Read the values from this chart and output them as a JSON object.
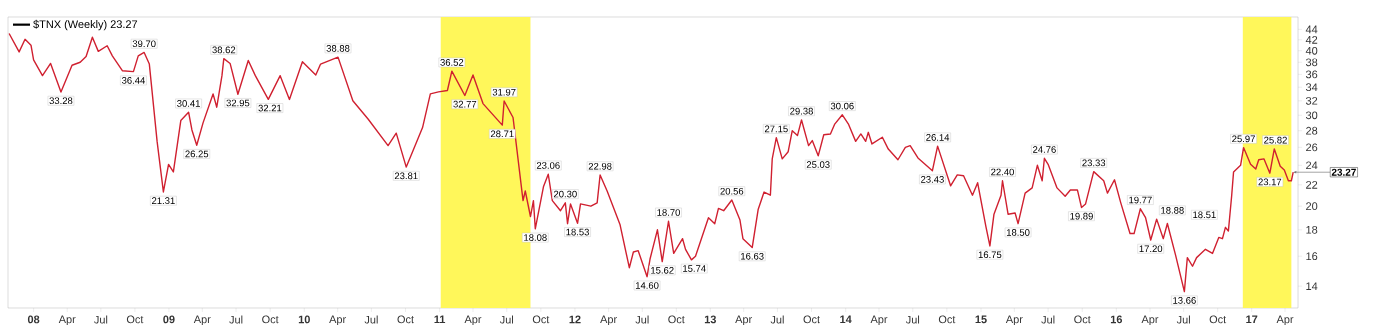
{
  "chart_data": {
    "type": "line",
    "log": true,
    "legend": "top left",
    "line_style": "solid",
    "series": [
      {
        "name": "$TNX (Weekly) 23.27",
        "color": "#d02030",
        "x": [
          "2007-10-27",
          "2007-11-23",
          "2007-12-09",
          "2007-12-25",
          "2008-01-01",
          "2008-01-25",
          "2008-02-16",
          "2008-03-15",
          "2008-04-14",
          "2008-05-06",
          "2008-05-22",
          "2008-06-08",
          "2008-06-24",
          "2008-07-18",
          "2008-08-01",
          "2008-08-28",
          "2008-09-27",
          "2008-10-10",
          "2008-10-26",
          "2008-11-09",
          "2008-11-30",
          "2008-12-17",
          "2008-12-31",
          "2009-01-13",
          "2009-02-02",
          "2009-02-23",
          "2009-03-04",
          "2009-03-17",
          "2009-04-03",
          "2009-04-30",
          "2009-05-10",
          "2009-05-24",
          "2009-05-29",
          "2009-06-15",
          "2009-07-06",
          "2009-08-03",
          "2009-08-22",
          "2009-09-26",
          "2009-10-28",
          "2009-11-22",
          "2009-12-27",
          "2010-02-01",
          "2010-02-14",
          "2010-04-02",
          "2010-05-12",
          "2010-06-22",
          "2010-08-15",
          "2010-09-06",
          "2010-10-03",
          "2010-10-22",
          "2010-11-16",
          "2010-12-07",
          "2010-12-29",
          "2011-01-22",
          "2011-02-03",
          "2011-03-10",
          "2011-04-01",
          "2011-04-28",
          "2011-06-19",
          "2011-06-24",
          "2011-07-18",
          "2011-08-14",
          "2011-08-20",
          "2011-09-03",
          "2011-09-11",
          "2011-09-16",
          "2011-10-08",
          "2011-10-21",
          "2011-11-01",
          "2011-11-23",
          "2011-12-06",
          "2011-12-12",
          "2011-12-20",
          "2012-01-08",
          "2012-01-16",
          "2012-02-13",
          "2012-03-01",
          "2012-03-09",
          "2012-03-28",
          "2012-05-02",
          "2012-05-27",
          "2012-06-07",
          "2012-06-20",
          "2012-07-14",
          "2012-07-22",
          "2012-08-11",
          "2012-08-24",
          "2012-09-10",
          "2012-09-24",
          "2012-10-18",
          "2012-10-26",
          "2012-11-11",
          "2012-11-22",
          "2012-12-27",
          "2013-01-13",
          "2013-01-23",
          "2013-02-06",
          "2013-02-28",
          "2013-03-22",
          "2013-03-30",
          "2013-04-24",
          "2013-05-10",
          "2013-05-26",
          "2013-06-12",
          "2013-06-17",
          "2013-06-28",
          "2013-07-14",
          "2013-07-30",
          "2013-08-10",
          "2013-08-24",
          "2013-09-04",
          "2013-09-23",
          "2013-10-03",
          "2013-10-19",
          "2013-11-03",
          "2013-11-21",
          "2013-12-02",
          "2013-12-23",
          "2014-01-09",
          "2014-01-28",
          "2014-02-11",
          "2014-02-24",
          "2014-03-03",
          "2014-03-13",
          "2014-04-10",
          "2014-04-26",
          "2014-05-22",
          "2014-06-11",
          "2014-06-24",
          "2014-07-15",
          "2014-08-23",
          "2014-09-06",
          "2014-10-11",
          "2014-10-29",
          "2014-11-15",
          "2014-12-09",
          "2014-12-23",
          "2015-01-14",
          "2015-01-25",
          "2015-02-05",
          "2015-02-24",
          "2015-02-28",
          "2015-03-15",
          "2015-04-03",
          "2015-04-11",
          "2015-04-30",
          "2015-05-19",
          "2015-06-02",
          "2015-06-15",
          "2015-06-21",
          "2015-07-01",
          "2015-07-25",
          "2015-08-16",
          "2015-08-30",
          "2015-09-18",
          "2015-09-29",
          "2015-10-10",
          "2015-11-01",
          "2015-11-28",
          "2015-12-08",
          "2015-12-27",
          "2016-01-13",
          "2016-02-07",
          "2016-02-18",
          "2016-03-06",
          "2016-03-20",
          "2016-04-03",
          "2016-04-19",
          "2016-05-07",
          "2016-05-18",
          "2016-06-09",
          "2016-07-03",
          "2016-07-11",
          "2016-07-25",
          "2016-08-05",
          "2016-08-29",
          "2016-09-17",
          "2016-10-04",
          "2016-10-14",
          "2016-10-22",
          "2016-10-30",
          "2016-11-08",
          "2016-11-13",
          "2016-12-02",
          "2016-12-10",
          "2016-12-29",
          "2017-01-12",
          "2017-01-20",
          "2017-02-03",
          "2017-02-19",
          "2017-03-03",
          "2017-03-19",
          "2017-03-30",
          "2017-04-10",
          "2017-04-18",
          "2017-04-23"
        ],
        "values": [
          43.2,
          39.8,
          42.1,
          41.0,
          38.4,
          35.8,
          37.8,
          33.28,
          37.5,
          38.0,
          39.0,
          42.5,
          39.9,
          40.9,
          39.1,
          36.6,
          36.44,
          39.1,
          39.7,
          37.7,
          26.7,
          21.31,
          24.1,
          23.3,
          29.3,
          30.41,
          28.1,
          26.25,
          29.0,
          33.0,
          31.1,
          35.8,
          38.62,
          37.8,
          32.95,
          38.3,
          35.8,
          32.21,
          35.8,
          32.2,
          38.1,
          35.9,
          37.7,
          38.88,
          32.0,
          29.5,
          26.2,
          27.7,
          23.81,
          25.7,
          28.4,
          33.0,
          33.3,
          33.5,
          36.52,
          32.77,
          35.9,
          31.6,
          28.71,
          31.97,
          29.7,
          20.5,
          21.4,
          19.1,
          20.5,
          18.08,
          21.8,
          23.06,
          20.5,
          19.6,
          20.3,
          18.5,
          20.2,
          18.53,
          20.2,
          20.0,
          20.3,
          22.98,
          21.4,
          18.4,
          15.2,
          16.3,
          16.4,
          14.6,
          15.8,
          18.0,
          15.62,
          18.7,
          16.2,
          17.3,
          16.5,
          15.74,
          16.0,
          19.0,
          18.5,
          19.8,
          19.6,
          20.56,
          18.8,
          17.3,
          16.63,
          19.7,
          21.3,
          21.0,
          24.7,
          27.15,
          24.7,
          25.5,
          28.0,
          27.4,
          29.38,
          26.2,
          26.8,
          25.03,
          27.5,
          27.6,
          28.8,
          30.06,
          28.8,
          26.7,
          27.6,
          26.7,
          27.8,
          26.4,
          27.2,
          25.8,
          24.6,
          26.0,
          26.2,
          24.8,
          23.43,
          26.14,
          21.9,
          23.0,
          22.9,
          21.0,
          22.2,
          18.3,
          16.75,
          19.3,
          21.0,
          22.4,
          19.3,
          19.4,
          18.5,
          21.2,
          21.7,
          24.0,
          22.4,
          24.76,
          24.1,
          21.7,
          20.9,
          21.5,
          21.5,
          19.89,
          20.2,
          23.33,
          22.4,
          21.2,
          22.5,
          20.3,
          17.7,
          17.7,
          19.77,
          19.0,
          17.2,
          18.88,
          17.3,
          18.51,
          16.1,
          13.66,
          15.9,
          15.3,
          15.9,
          16.5,
          16.2,
          17.4,
          17.3,
          18.2,
          17.9,
          21.0,
          23.3,
          24.0,
          25.97,
          24.1,
          23.6,
          24.6,
          24.7,
          23.17,
          25.82,
          23.9,
          23.5,
          22.4,
          22.4,
          23.27
        ]
      }
    ],
    "xlim": [
      "2007-10-24",
      "2017-05-06"
    ],
    "ylim": [
      12.7,
      46.5
    ],
    "yticks": [
      14,
      16,
      18,
      20,
      22,
      24,
      26,
      28,
      30,
      32,
      34,
      36,
      38,
      40,
      42,
      44
    ],
    "xticks": [
      {
        "value": "2008-01-01",
        "label": "08"
      },
      {
        "value": "2008-04-01",
        "label": "Apr"
      },
      {
        "value": "2008-07-01",
        "label": "Jul"
      },
      {
        "value": "2008-10-01",
        "label": "Oct"
      },
      {
        "value": "2009-01-01",
        "label": "09"
      },
      {
        "value": "2009-04-01",
        "label": "Apr"
      },
      {
        "value": "2009-07-01",
        "label": "Jul"
      },
      {
        "value": "2009-10-01",
        "label": "Oct"
      },
      {
        "value": "2010-01-01",
        "label": "10"
      },
      {
        "value": "2010-04-01",
        "label": "Apr"
      },
      {
        "value": "2010-07-01",
        "label": "Jul"
      },
      {
        "value": "2010-10-01",
        "label": "Oct"
      },
      {
        "value": "2011-01-01",
        "label": "11"
      },
      {
        "value": "2011-04-01",
        "label": "Apr"
      },
      {
        "value": "2011-07-01",
        "label": "Jul"
      },
      {
        "value": "2011-10-01",
        "label": "Oct"
      },
      {
        "value": "2012-01-01",
        "label": "12"
      },
      {
        "value": "2012-04-01",
        "label": "Apr"
      },
      {
        "value": "2012-07-01",
        "label": "Jul"
      },
      {
        "value": "2012-10-01",
        "label": "Oct"
      },
      {
        "value": "2013-01-01",
        "label": "13"
      },
      {
        "value": "2013-04-01",
        "label": "Apr"
      },
      {
        "value": "2013-07-01",
        "label": "Jul"
      },
      {
        "value": "2013-10-01",
        "label": "Oct"
      },
      {
        "value": "2014-01-01",
        "label": "14"
      },
      {
        "value": "2014-04-01",
        "label": "Apr"
      },
      {
        "value": "2014-07-01",
        "label": "Jul"
      },
      {
        "value": "2014-10-01",
        "label": "Oct"
      },
      {
        "value": "2015-01-01",
        "label": "15"
      },
      {
        "value": "2015-04-01",
        "label": "Apr"
      },
      {
        "value": "2015-07-01",
        "label": "Jul"
      },
      {
        "value": "2015-10-01",
        "label": "Oct"
      },
      {
        "value": "2016-01-01",
        "label": "16"
      },
      {
        "value": "2016-04-01",
        "label": "Apr"
      },
      {
        "value": "2016-07-01",
        "label": "Jul"
      },
      {
        "value": "2016-10-01",
        "label": "Oct"
      },
      {
        "value": "2017-01-01",
        "label": "17"
      },
      {
        "value": "2017-04-01",
        "label": "Apr"
      }
    ],
    "bands": [
      {
        "axis": "x",
        "from": "2011-01-04",
        "to": "2011-09-03",
        "color": "#fff75a"
      },
      {
        "axis": "x",
        "from": "2016-12-08",
        "to": "2017-04-18",
        "color": "#fff75a"
      }
    ],
    "annotations": [
      {
        "text": "33.28",
        "x": "2008-03-15",
        "y": 33.28
      },
      {
        "text": "36.44",
        "x": "2008-09-27",
        "y": 36.44
      },
      {
        "text": "39.70",
        "x": "2008-10-26",
        "y": 39.7
      },
      {
        "text": "21.31",
        "x": "2008-12-17",
        "y": 21.31
      },
      {
        "text": "30.41",
        "x": "2009-02-23",
        "y": 30.41
      },
      {
        "text": "26.25",
        "x": "2009-03-17",
        "y": 26.25
      },
      {
        "text": "38.62",
        "x": "2009-05-29",
        "y": 38.62
      },
      {
        "text": "32.95",
        "x": "2009-07-06",
        "y": 32.95
      },
      {
        "text": "32.21",
        "x": "2009-09-26",
        "y": 32.21
      },
      {
        "text": "38.88",
        "x": "2010-04-02",
        "y": 38.88
      },
      {
        "text": "23.81",
        "x": "2010-10-03",
        "y": 23.81
      },
      {
        "text": "36.52",
        "x": "2011-02-03",
        "y": 36.52
      },
      {
        "text": "32.77",
        "x": "2011-03-10",
        "y": 32.77
      },
      {
        "text": "28.71",
        "x": "2011-06-19",
        "y": 28.71
      },
      {
        "text": "31.97",
        "x": "2011-06-24",
        "y": 31.97
      },
      {
        "text": "18.08",
        "x": "2011-09-16",
        "y": 18.08
      },
      {
        "text": "23.06",
        "x": "2011-10-21",
        "y": 23.06
      },
      {
        "text": "20.30",
        "x": "2011-12-06",
        "y": 20.3
      },
      {
        "text": "18.53",
        "x": "2012-01-08",
        "y": 18.53
      },
      {
        "text": "22.98",
        "x": "2012-03-09",
        "y": 22.98
      },
      {
        "text": "14.60",
        "x": "2012-07-14",
        "y": 14.6
      },
      {
        "text": "15.62",
        "x": "2012-08-24",
        "y": 15.62
      },
      {
        "text": "18.70",
        "x": "2012-09-10",
        "y": 18.7
      },
      {
        "text": "15.74",
        "x": "2012-11-11",
        "y": 15.74
      },
      {
        "text": "20.56",
        "x": "2013-02-28",
        "y": 20.56
      },
      {
        "text": "16.63",
        "x": "2013-04-24",
        "y": 16.63
      },
      {
        "text": "27.15",
        "x": "2013-06-28",
        "y": 27.15
      },
      {
        "text": "29.38",
        "x": "2013-09-04",
        "y": 29.38
      },
      {
        "text": "25.03",
        "x": "2013-10-19",
        "y": 25.03
      },
      {
        "text": "30.06",
        "x": "2013-12-23",
        "y": 30.06
      },
      {
        "text": "23.43",
        "x": "2014-08-23",
        "y": 23.43
      },
      {
        "text": "26.14",
        "x": "2014-09-06",
        "y": 26.14
      },
      {
        "text": "16.75",
        "x": "2015-01-25",
        "y": 16.75
      },
      {
        "text": "22.40",
        "x": "2015-02-28",
        "y": 22.4
      },
      {
        "text": "18.50",
        "x": "2015-04-11",
        "y": 18.5
      },
      {
        "text": "24.76",
        "x": "2015-06-21",
        "y": 24.76
      },
      {
        "text": "19.89",
        "x": "2015-09-29",
        "y": 19.89
      },
      {
        "text": "23.33",
        "x": "2015-11-01",
        "y": 23.33
      },
      {
        "text": "19.77",
        "x": "2016-03-06",
        "y": 19.77
      },
      {
        "text": "17.20",
        "x": "2016-04-03",
        "y": 17.2
      },
      {
        "text": "18.88",
        "x": "2016-04-19",
        "y": 18.88
      },
      {
        "text": "18.51",
        "x": "2016-05-18",
        "y": 18.51
      },
      {
        "text": "13.66",
        "x": "2016-07-03",
        "y": 13.66
      },
      {
        "text": "25.97",
        "x": "2016-12-10",
        "y": 25.97
      },
      {
        "text": "23.17",
        "x": "2017-02-19",
        "y": 23.17
      },
      {
        "text": "25.82",
        "x": "2017-03-03",
        "y": 25.82
      },
      {
        "text": "23.27",
        "x": "2017-04-23",
        "y": 23.27
      }
    ]
  }
}
